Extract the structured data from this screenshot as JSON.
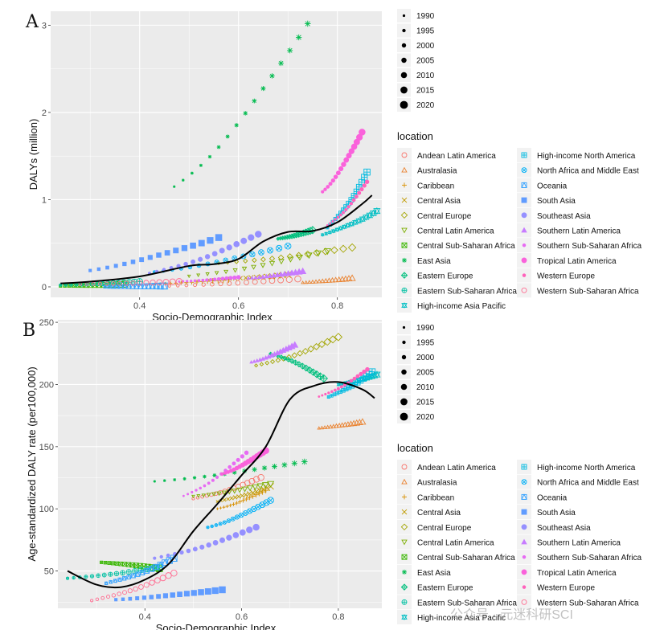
{
  "chart_data": [
    {
      "type": "scatter",
      "panel": "A",
      "xlabel": "Socio-Demographic Index",
      "ylabel": "DALYs (million)",
      "xlim": [
        0.22,
        0.89
      ],
      "ylim": [
        -0.12,
        3.16
      ],
      "xticks": [
        0.4,
        0.6,
        0.8
      ],
      "yticks": [
        0,
        1,
        2,
        3
      ],
      "size_legend": [
        "1990",
        "1995",
        "2000",
        "2005",
        "2010",
        "2015",
        "2020"
      ],
      "series": [
        {
          "name": "Andean Latin America",
          "x": [
            0.46,
            0.72
          ],
          "y": [
            0.01,
            0.09
          ]
        },
        {
          "name": "Australasia",
          "x": [
            0.73,
            0.83
          ],
          "y": [
            0.05,
            0.1
          ]
        },
        {
          "name": "Caribbean",
          "x": [
            0.42,
            0.58
          ],
          "y": [
            0.03,
            0.08
          ]
        },
        {
          "name": "Central Asia",
          "x": [
            0.54,
            0.7
          ],
          "y": [
            0.08,
            0.14
          ]
        },
        {
          "name": "Central Europe",
          "x": [
            0.56,
            0.83
          ],
          "y": [
            0.27,
            0.45
          ]
        },
        {
          "name": "Central Latin America",
          "x": [
            0.5,
            0.78
          ],
          "y": [
            0.12,
            0.41
          ]
        },
        {
          "name": "Central Sub-Saharan Africa",
          "x": [
            0.24,
            0.37
          ],
          "y": [
            0.01,
            0.03
          ]
        },
        {
          "name": "East Asia",
          "x": [
            0.47,
            0.74
          ],
          "y": [
            1.14,
            3.03
          ]
        },
        {
          "name": "Eastern Europe",
          "x": [
            0.68,
            0.75
          ],
          "y": [
            0.55,
            0.65
          ]
        },
        {
          "name": "Eastern Sub-Saharan Africa",
          "x": [
            0.24,
            0.4
          ],
          "y": [
            0.02,
            0.06
          ]
        },
        {
          "name": "High-income Asia Pacific",
          "x": [
            0.77,
            0.88
          ],
          "y": [
            0.6,
            0.87
          ]
        },
        {
          "name": "High-income North America",
          "x": [
            0.78,
            0.86
          ],
          "y": [
            0.68,
            1.31
          ]
        },
        {
          "name": "North Africa and Middle East",
          "x": [
            0.43,
            0.7
          ],
          "y": [
            0.17,
            0.47
          ]
        },
        {
          "name": "Oceania",
          "x": [
            0.33,
            0.45
          ],
          "y": [
            0.0,
            0.01
          ]
        },
        {
          "name": "South Asia",
          "x": [
            0.3,
            0.56
          ],
          "y": [
            0.19,
            0.57
          ]
        },
        {
          "name": "Southeast Asia",
          "x": [
            0.42,
            0.64
          ],
          "y": [
            0.15,
            0.6
          ]
        },
        {
          "name": "Southern Latin America",
          "x": [
            0.62,
            0.73
          ],
          "y": [
            0.1,
            0.18
          ]
        },
        {
          "name": "Southern Sub-Saharan Africa",
          "x": [
            0.48,
            0.6
          ],
          "y": [
            0.06,
            0.11
          ]
        },
        {
          "name": "Tropical Latin America",
          "x": [
            0.77,
            0.85
          ],
          "y": [
            1.09,
            1.78
          ]
        },
        {
          "name": "Western Europe",
          "x": [
            0.78,
            0.86
          ],
          "y": [
            0.7,
            1.2
          ]
        },
        {
          "name": "Western Sub-Saharan Africa",
          "x": [
            0.28,
            0.48
          ],
          "y": [
            0.03,
            0.06
          ]
        }
      ],
      "trend": {
        "x": [
          0.24,
          0.3,
          0.4,
          0.5,
          0.55,
          0.6,
          0.65,
          0.7,
          0.75,
          0.8,
          0.85,
          0.87
        ],
        "y": [
          0.04,
          0.06,
          0.12,
          0.24,
          0.26,
          0.32,
          0.52,
          0.63,
          0.64,
          0.74,
          0.95,
          1.05
        ]
      }
    },
    {
      "type": "scatter",
      "panel": "B",
      "xlabel": "Socio-Demographic Index",
      "ylabel": "Age-standardized DALY rate (per100,000)",
      "xlim": [
        0.22,
        0.89
      ],
      "ylim": [
        20,
        252
      ],
      "xticks": [
        0.4,
        0.6,
        0.8
      ],
      "yticks": [
        50,
        100,
        150,
        200,
        250
      ],
      "size_legend": [
        "1990",
        "1995",
        "2000",
        "2005",
        "2010",
        "2015",
        "2020"
      ],
      "series": [
        {
          "name": "Andean Latin America",
          "x": [
            0.5,
            0.64
          ],
          "y": [
            108,
            125
          ]
        },
        {
          "name": "Australasia",
          "x": [
            0.76,
            0.85
          ],
          "y": [
            165,
            170
          ]
        },
        {
          "name": "Caribbean",
          "x": [
            0.55,
            0.65
          ],
          "y": [
            100,
            115
          ]
        },
        {
          "name": "Central Asia",
          "x": [
            0.55,
            0.66
          ],
          "y": [
            106,
            118
          ]
        },
        {
          "name": "Central Europe",
          "x": [
            0.63,
            0.8
          ],
          "y": [
            215,
            238
          ]
        },
        {
          "name": "Central Latin America",
          "x": [
            0.5,
            0.66
          ],
          "y": [
            110,
            120
          ]
        },
        {
          "name": "Central Sub-Saharan Africa",
          "x": [
            0.31,
            0.43
          ],
          "y": [
            57,
            52
          ]
        },
        {
          "name": "East Asia",
          "x": [
            0.42,
            0.73
          ],
          "y": [
            122,
            138
          ]
        },
        {
          "name": "Eastern Europe",
          "x": [
            0.66,
            0.77
          ],
          "y": [
            225,
            205
          ]
        },
        {
          "name": "Eastern Sub-Saharan Africa",
          "x": [
            0.24,
            0.43
          ],
          "y": [
            44,
            53
          ]
        },
        {
          "name": "High-income Asia Pacific",
          "x": [
            0.8,
            0.88
          ],
          "y": [
            200,
            208
          ]
        },
        {
          "name": "High-income North America",
          "x": [
            0.78,
            0.87
          ],
          "y": [
            190,
            210
          ]
        },
        {
          "name": "North Africa and Middle East",
          "x": [
            0.53,
            0.66
          ],
          "y": [
            85,
            107
          ]
        },
        {
          "name": "Oceania",
          "x": [
            0.32,
            0.46
          ],
          "y": [
            40,
            60
          ]
        },
        {
          "name": "South Asia",
          "x": [
            0.34,
            0.56
          ],
          "y": [
            27,
            35
          ]
        },
        {
          "name": "Southeast Asia",
          "x": [
            0.42,
            0.63
          ],
          "y": [
            60,
            85
          ]
        },
        {
          "name": "Southern Latin America",
          "x": [
            0.62,
            0.71
          ],
          "y": [
            218,
            232
          ]
        },
        {
          "name": "Southern Sub-Saharan Africa",
          "x": [
            0.48,
            0.61
          ],
          "y": [
            110,
            145
          ]
        },
        {
          "name": "Tropical Latin America",
          "x": [
            0.56,
            0.65
          ],
          "y": [
            128,
            147
          ]
        },
        {
          "name": "Western Europe",
          "x": [
            0.76,
            0.86
          ],
          "y": [
            190,
            212
          ]
        },
        {
          "name": "Western Sub-Saharan Africa",
          "x": [
            0.29,
            0.46
          ],
          "y": [
            26,
            48
          ]
        }
      ],
      "trend": {
        "x": [
          0.24,
          0.3,
          0.35,
          0.4,
          0.45,
          0.5,
          0.55,
          0.6,
          0.65,
          0.7,
          0.75,
          0.8,
          0.85,
          0.875
        ],
        "y": [
          50,
          39,
          37,
          43,
          56,
          82,
          104,
          127,
          150,
          188,
          199,
          202,
          196,
          189
        ]
      }
    }
  ],
  "legend": {
    "size_title": "",
    "color_title": "location"
  },
  "styles": [
    {
      "name": "Andean Latin America",
      "color": "#F8766D",
      "symbol": "circle-open"
    },
    {
      "name": "Australasia",
      "color": "#EA8331",
      "symbol": "triangle-open"
    },
    {
      "name": "Caribbean",
      "color": "#D89000",
      "symbol": "plus"
    },
    {
      "name": "Central Asia",
      "color": "#C09B00",
      "symbol": "cross"
    },
    {
      "name": "Central Europe",
      "color": "#A3A500",
      "symbol": "diamond-open"
    },
    {
      "name": "Central Latin America",
      "color": "#7CAE00",
      "symbol": "triangle-down-open"
    },
    {
      "name": "Central Sub-Saharan Africa",
      "color": "#39B600",
      "symbol": "square-cross"
    },
    {
      "name": "East Asia",
      "color": "#00BB4E",
      "symbol": "asterisk"
    },
    {
      "name": "Eastern Europe",
      "color": "#00BF7D",
      "symbol": "diamond-plus"
    },
    {
      "name": "Eastern Sub-Saharan Africa",
      "color": "#00C1A3",
      "symbol": "circle-plus"
    },
    {
      "name": "High-income Asia Pacific",
      "color": "#00BFC4",
      "symbol": "star-of-david"
    },
    {
      "name": "High-income North America",
      "color": "#00BAE0",
      "symbol": "square-plus"
    },
    {
      "name": "North Africa and Middle East",
      "color": "#00B0F6",
      "symbol": "circle-cross"
    },
    {
      "name": "Oceania",
      "color": "#35A2FF",
      "symbol": "square-triangle"
    },
    {
      "name": "South Asia",
      "color": "#619CFF",
      "symbol": "square"
    },
    {
      "name": "Southeast Asia",
      "color": "#9590FF",
      "symbol": "circle"
    },
    {
      "name": "Southern Latin America",
      "color": "#C77CFF",
      "symbol": "triangle"
    },
    {
      "name": "Southern Sub-Saharan Africa",
      "color": "#E76BF3",
      "symbol": "dot"
    },
    {
      "name": "Tropical Latin America",
      "color": "#FA62DB",
      "symbol": "circle"
    },
    {
      "name": "Western Europe",
      "color": "#FF62BC",
      "symbol": "dot"
    },
    {
      "name": "Western Sub-Saharan Africa",
      "color": "#FF6C91",
      "symbol": "circle-open"
    }
  ],
  "watermark": "公众号 · 元迷科研SCI"
}
